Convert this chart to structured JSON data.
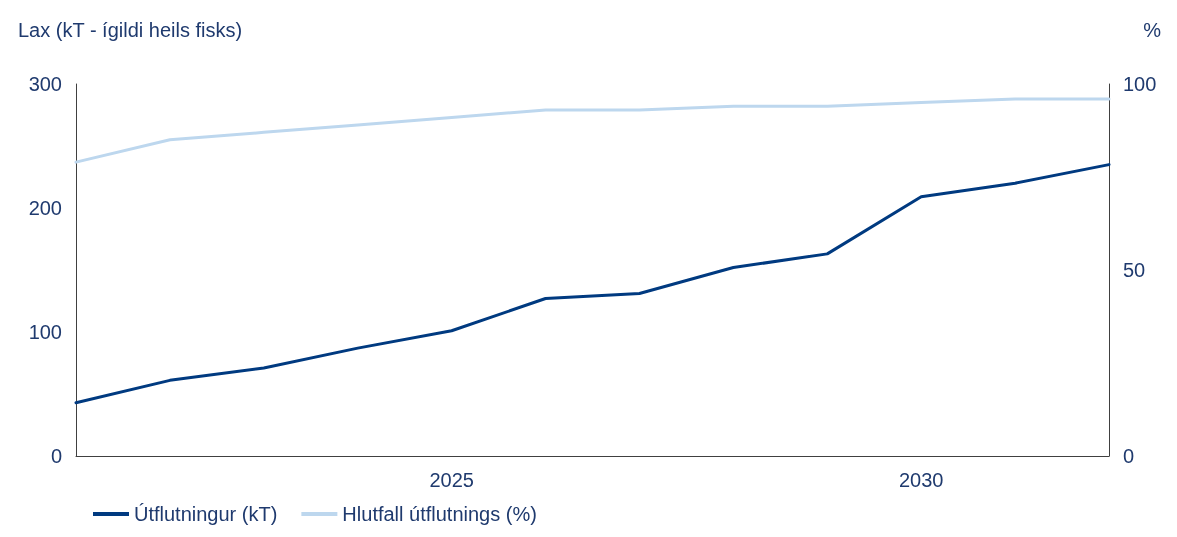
{
  "chart_data": {
    "type": "line",
    "ylabel": "Lax (kT - ígildi heils fisks)",
    "y2label": "%",
    "x": [
      2021,
      2022,
      2023,
      2024,
      2025,
      2026,
      2027,
      2028,
      2029,
      2030,
      2031,
      2032
    ],
    "xlim": [
      2021,
      2032
    ],
    "xticks": [
      2025,
      2030
    ],
    "ylim": [
      0,
      300
    ],
    "yticks": [
      0,
      100,
      200,
      300
    ],
    "y2lim": [
      0,
      100
    ],
    "y2ticks": [
      0,
      50,
      100
    ],
    "series": [
      {
        "name": "Útflutningur (kT)",
        "color": "#003a80",
        "values": [
          43,
          61,
          71,
          87,
          101,
          127,
          131,
          152,
          163,
          209,
          220,
          235
        ]
      },
      {
        "name": "Hlutfall útflutnings (%)",
        "color": "#bdd7ee",
        "axis": "y2",
        "values": [
          79,
          85,
          87,
          89,
          91,
          93,
          93,
          94,
          94,
          95,
          96,
          96
        ]
      }
    ],
    "grid": false,
    "legend": "bottom left",
    "marker": "none",
    "line_style": "solid"
  }
}
